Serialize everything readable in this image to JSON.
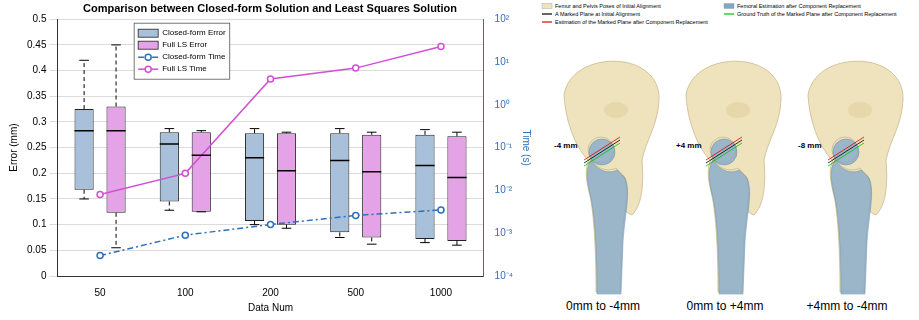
{
  "chart_data": {
    "type": "box",
    "title": "Comparison between Closed-form Solution and Least Squares Solution",
    "x_label": "Data Num",
    "y_label": "Error (mm)",
    "y2_label": "Time (s)",
    "categories": [
      "50",
      "100",
      "200",
      "500",
      "1000"
    ],
    "ylim": [
      0,
      0.5
    ],
    "yticks": [
      0,
      0.05,
      0.1,
      0.15,
      0.2,
      0.25,
      0.3,
      0.35,
      0.4,
      0.45,
      0.5
    ],
    "y2lim": [
      0.0001,
      100
    ],
    "y2ticks": [
      {
        "value": 0.0001,
        "label": "10⁻⁴"
      },
      {
        "value": 0.001,
        "label": "10⁻³"
      },
      {
        "value": 0.01,
        "label": "10⁻²"
      },
      {
        "value": 0.1,
        "label": "10⁻¹"
      },
      {
        "value": 1,
        "label": "10⁰"
      },
      {
        "value": 10,
        "label": "10¹"
      },
      {
        "value": 100,
        "label": "10²"
      }
    ],
    "log": "y2",
    "grid": true,
    "legend": "upper left",
    "series": [
      {
        "name": "Closed-form Error",
        "type": "box",
        "color": "#a9c0da",
        "values": [
          {
            "whisker_low": 0.15,
            "q1": 0.168,
            "median": 0.283,
            "q3": 0.325,
            "whisker_high": 0.42
          },
          {
            "whisker_low": 0.128,
            "q1": 0.145,
            "median": 0.257,
            "q3": 0.28,
            "whisker_high": 0.287
          },
          {
            "whisker_low": 0.1,
            "q1": 0.107,
            "median": 0.23,
            "q3": 0.278,
            "whisker_high": 0.287
          },
          {
            "whisker_low": 0.075,
            "q1": 0.085,
            "median": 0.225,
            "q3": 0.278,
            "whisker_high": 0.287
          },
          {
            "whisker_low": 0.065,
            "q1": 0.072,
            "median": 0.215,
            "q3": 0.275,
            "whisker_high": 0.285
          }
        ]
      },
      {
        "name": "Full LS Error",
        "type": "box",
        "color": "#e4a3e6",
        "values": [
          {
            "whisker_low": 0.055,
            "q1": 0.123,
            "median": 0.283,
            "q3": 0.33,
            "whisker_high": 0.45
          },
          {
            "whisker_low": 0.125,
            "q1": 0.125,
            "median": 0.235,
            "q3": 0.28,
            "whisker_high": 0.283
          },
          {
            "whisker_low": 0.093,
            "q1": 0.1,
            "median": 0.205,
            "q3": 0.278,
            "whisker_high": 0.28
          },
          {
            "whisker_low": 0.062,
            "q1": 0.075,
            "median": 0.203,
            "q3": 0.275,
            "whisker_high": 0.28
          },
          {
            "whisker_low": 0.06,
            "q1": 0.068,
            "median": 0.192,
            "q3": 0.272,
            "whisker_high": 0.28
          }
        ]
      },
      {
        "name": "Closed-form Time",
        "type": "line",
        "axis": "y2",
        "color": "#2f6eba",
        "marker": "circle",
        "line_style": "dashdot",
        "values": [
          0.0003,
          0.0009,
          0.0016,
          0.0026,
          0.0035
        ]
      },
      {
        "name": "Full LS Time",
        "type": "line",
        "axis": "y2",
        "color": "#d24fd4",
        "marker": "circle",
        "line_style": "solid",
        "values": [
          0.008,
          0.025,
          4,
          7.2,
          23
        ]
      }
    ]
  },
  "figure": {
    "legend": [
      {
        "label": "Femur and Pelvis Poses of Initial Alignment",
        "color": "#efe3bd",
        "marker": "square"
      },
      {
        "label": "A Marked Plane at Initial Alignment",
        "color": "#000000",
        "line_style": "solid"
      },
      {
        "label": "Estimation of the Marked Plane after Component Replacement",
        "color": "#e00000",
        "line_style": "solid"
      },
      {
        "label": "Femoral Estimation after Component Replacement",
        "color": "#7fa7cc",
        "marker": "square"
      },
      {
        "label": "Ground Truth of the Marked Plane after Component Replacement",
        "color": "#00c000",
        "line_style": "solid"
      }
    ],
    "panels": [
      {
        "annotation": "-4 mm",
        "caption": "0mm to -4mm"
      },
      {
        "annotation": "+4 mm",
        "caption": "0mm to +4mm"
      },
      {
        "annotation": "-8 mm",
        "caption": "+4mm to -4mm"
      }
    ]
  }
}
